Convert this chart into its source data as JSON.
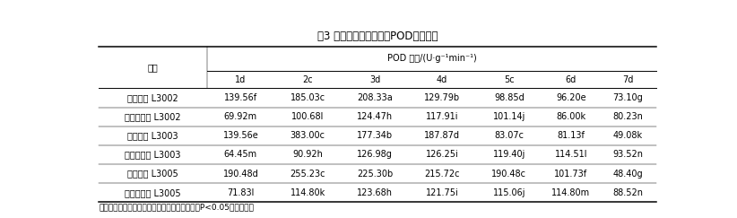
{
  "title": "表3 不同金针菇子实体的POD活性变化",
  "header_col": "菌株",
  "header_group": "POD 活性/(U·g⁻¹min⁻¹)",
  "sub_headers": [
    "1d",
    "2c",
    "3d",
    "4d",
    "5c",
    "6d",
    "7d"
  ],
  "rows": [
    [
      "变种菌株 L3002",
      "139.56f",
      "185.03c",
      "208.33a",
      "129.79b",
      "98.85d",
      "96.20e",
      "73.10g"
    ],
    [
      "未接种菌株 L3002",
      "69.92m",
      "100.68l",
      "124.47h",
      "117.91i",
      "101.14j",
      "86.00k",
      "80.23n"
    ],
    [
      "变种菌株 L3003",
      "139.56e",
      "383.00c",
      "177.34b",
      "187.87d",
      "83.07c",
      "81.13f",
      "49.08k"
    ],
    [
      "未接种菌株 L3003",
      "64.45m",
      "90.92h",
      "126.98g",
      "126.25i",
      "119.40j",
      "114.51l",
      "93.52n"
    ],
    [
      "变种菌株 L3005",
      "190.48d",
      "255.23c",
      "225.30b",
      "215.72c",
      "190.48c",
      "101.73f",
      "48.40g"
    ],
    [
      "未接种菌株 L3005",
      "71.83l",
      "114.80k",
      "123.68h",
      "121.75i",
      "115.06j",
      "114.80m",
      "88.52n"
    ]
  ],
  "footnote": "注：同列中标有不同字母的数据表示差异显著（P<0.05），下同。",
  "bg_color": "#ffffff",
  "line_color": "#000000",
  "font_size": 7.0,
  "title_font_size": 8.5
}
